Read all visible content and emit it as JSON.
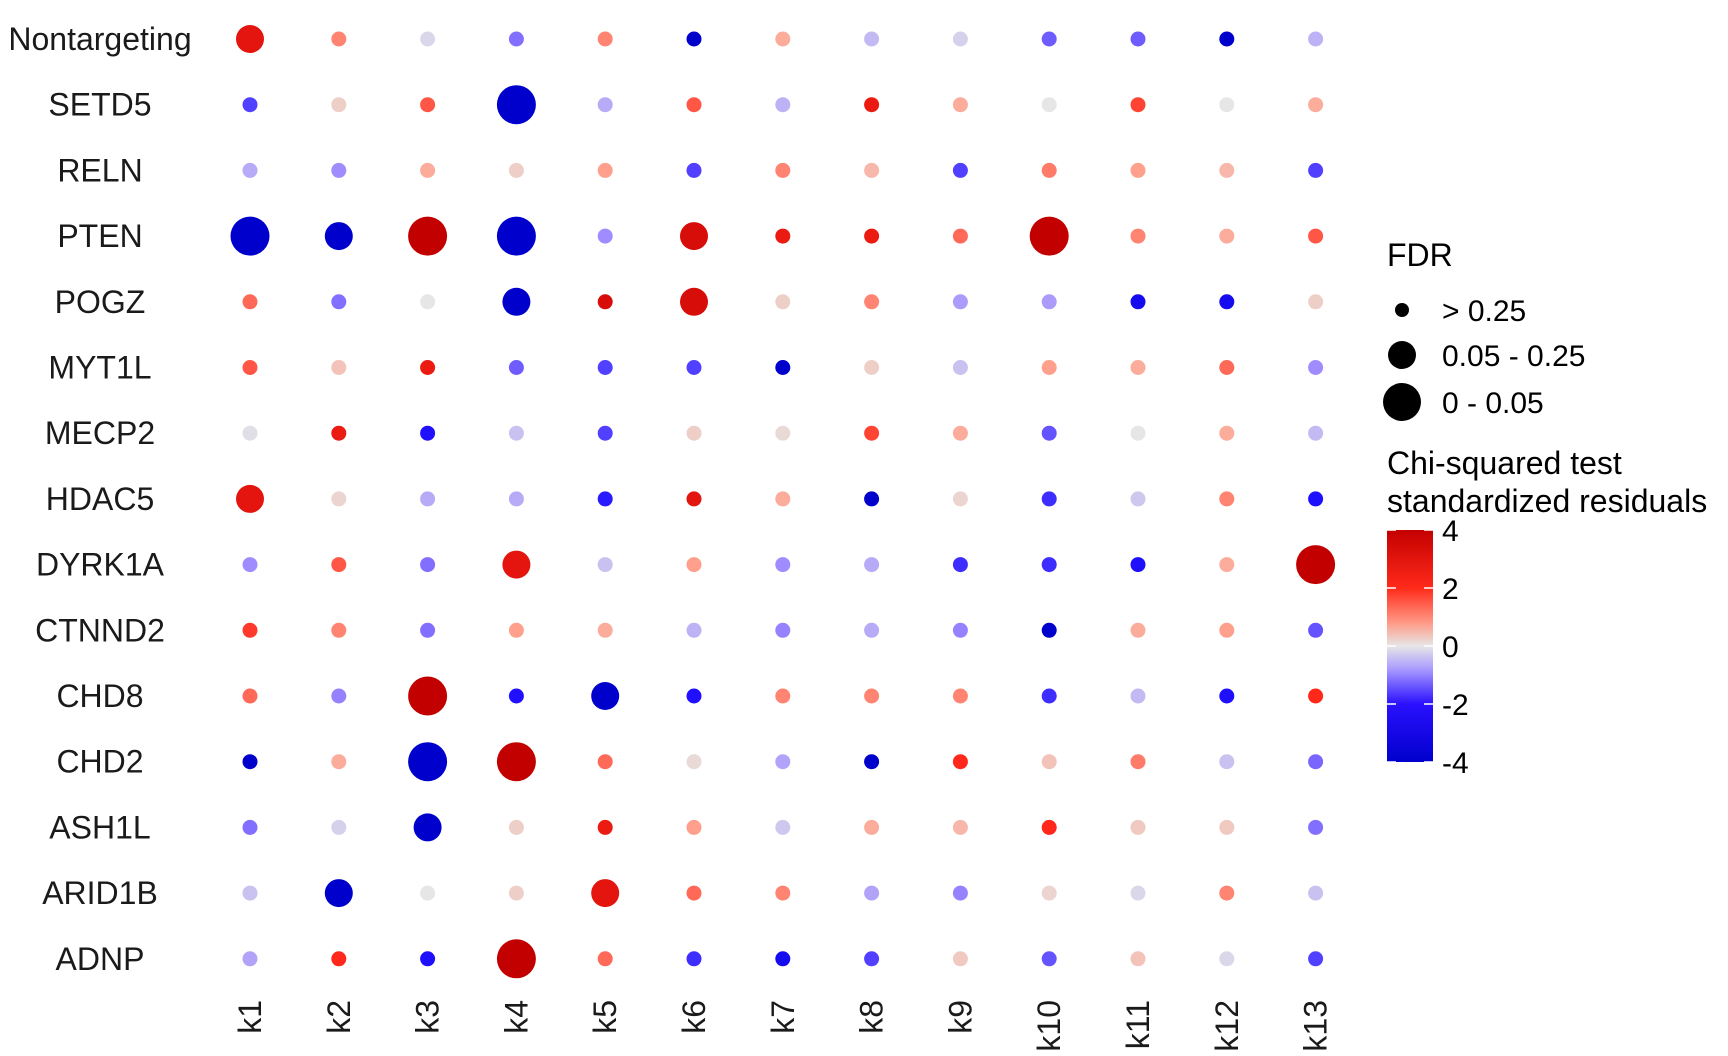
{
  "chart_data": {
    "type": "scatter",
    "subtype": "dot-matrix",
    "rows": [
      "Nontargeting",
      "SETD5",
      "RELN",
      "PTEN",
      "POGZ",
      "MYT1L",
      "MECP2",
      "HDAC5",
      "DYRK1A",
      "CTNND2",
      "CHD8",
      "CHD2",
      "ASH1L",
      "ARID1B",
      "ADNP"
    ],
    "columns": [
      "k1",
      "k2",
      "k3",
      "k4",
      "k5",
      "k6",
      "k7",
      "k8",
      "k9",
      "k10",
      "k11",
      "k12",
      "k13"
    ],
    "residuals": [
      [
        3.2,
        1.5,
        -0.2,
        -1.5,
        1.5,
        -4.0,
        1.0,
        -0.6,
        -0.3,
        -1.7,
        -1.7,
        -4.0,
        -0.7
      ],
      [
        -2.0,
        0.4,
        2.0,
        -4.0,
        -0.8,
        2.0,
        -0.7,
        3.0,
        1.0,
        0.0,
        2.2,
        0.0,
        1.0
      ],
      [
        -0.8,
        -1.2,
        1.0,
        0.4,
        1.2,
        -2.0,
        1.5,
        0.8,
        -2.0,
        1.6,
        1.2,
        0.8,
        -2.0
      ],
      [
        -4.0,
        -4.0,
        4.0,
        -4.0,
        -1.2,
        3.5,
        3.0,
        3.0,
        1.8,
        4.0,
        1.5,
        1.0,
        2.0
      ],
      [
        1.8,
        -1.5,
        0.0,
        -4.0,
        3.5,
        3.5,
        0.4,
        1.5,
        -1.0,
        -1.0,
        -3.0,
        -3.0,
        0.4
      ],
      [
        2.0,
        0.6,
        3.0,
        -1.7,
        -2.0,
        -2.0,
        -4.0,
        0.4,
        -0.5,
        1.2,
        1.0,
        1.8,
        -1.2
      ],
      [
        -0.1,
        3.0,
        -2.5,
        -0.5,
        -2.0,
        0.4,
        0.2,
        2.2,
        1.0,
        -1.8,
        0.0,
        1.0,
        -0.6
      ],
      [
        3.2,
        0.3,
        -0.8,
        -0.8,
        -2.4,
        3.2,
        1.0,
        -4.0,
        0.3,
        -2.2,
        -0.4,
        1.5,
        -2.6
      ],
      [
        -1.2,
        2.0,
        -1.5,
        3.2,
        -0.5,
        1.2,
        -1.2,
        -0.8,
        -2.2,
        -2.2,
        -2.6,
        1.0,
        4.0
      ],
      [
        2.3,
        1.5,
        -1.5,
        1.2,
        1.0,
        -0.7,
        -1.3,
        -0.8,
        -1.3,
        -4.0,
        1.0,
        1.2,
        -1.8
      ],
      [
        1.8,
        -1.3,
        4.0,
        -2.5,
        -4.0,
        -2.5,
        1.5,
        1.5,
        1.5,
        -2.2,
        -0.6,
        -2.6,
        2.5
      ],
      [
        -4.0,
        1.0,
        -4.0,
        4.0,
        1.8,
        0.2,
        -0.9,
        -4.0,
        2.5,
        0.6,
        1.6,
        -0.5,
        -1.6
      ],
      [
        -1.5,
        -0.3,
        -4.0,
        0.4,
        3.0,
        1.2,
        -0.4,
        1.0,
        0.8,
        2.5,
        0.5,
        0.5,
        -1.5
      ],
      [
        -0.5,
        -4.0,
        0.0,
        0.4,
        3.2,
        1.8,
        1.5,
        -0.9,
        -1.3,
        0.3,
        -0.2,
        1.5,
        -0.5
      ],
      [
        -0.9,
        2.5,
        -2.6,
        4.0,
        1.8,
        -2.2,
        -3.0,
        -2.0,
        0.5,
        -1.8,
        0.6,
        -0.2,
        -2.0
      ]
    ],
    "fdr_category": [
      [
        1,
        0,
        0,
        0,
        0,
        0,
        0,
        0,
        0,
        0,
        0,
        0,
        0
      ],
      [
        0,
        0,
        0,
        2,
        0,
        0,
        0,
        0,
        0,
        0,
        0,
        0,
        0
      ],
      [
        0,
        0,
        0,
        0,
        0,
        0,
        0,
        0,
        0,
        0,
        0,
        0,
        0
      ],
      [
        2,
        1,
        2,
        2,
        0,
        1,
        0,
        0,
        0,
        2,
        0,
        0,
        0
      ],
      [
        0,
        0,
        0,
        1,
        0,
        1,
        0,
        0,
        0,
        0,
        0,
        0,
        0
      ],
      [
        0,
        0,
        0,
        0,
        0,
        0,
        0,
        0,
        0,
        0,
        0,
        0,
        0
      ],
      [
        0,
        0,
        0,
        0,
        0,
        0,
        0,
        0,
        0,
        0,
        0,
        0,
        0
      ],
      [
        1,
        0,
        0,
        0,
        0,
        0,
        0,
        0,
        0,
        0,
        0,
        0,
        0
      ],
      [
        0,
        0,
        0,
        1,
        0,
        0,
        0,
        0,
        0,
        0,
        0,
        0,
        2
      ],
      [
        0,
        0,
        0,
        0,
        0,
        0,
        0,
        0,
        0,
        0,
        0,
        0,
        0
      ],
      [
        0,
        0,
        2,
        0,
        1,
        0,
        0,
        0,
        0,
        0,
        0,
        0,
        0
      ],
      [
        0,
        0,
        2,
        2,
        0,
        0,
        0,
        0,
        0,
        0,
        0,
        0,
        0
      ],
      [
        0,
        0,
        1,
        0,
        0,
        0,
        0,
        0,
        0,
        0,
        0,
        0,
        0
      ],
      [
        0,
        1,
        0,
        0,
        1,
        0,
        0,
        0,
        0,
        0,
        0,
        0,
        0
      ],
      [
        0,
        0,
        0,
        2,
        0,
        0,
        0,
        0,
        0,
        0,
        0,
        0,
        0
      ]
    ],
    "size_legend": {
      "title": "FDR",
      "labels": [
        "> 0.25",
        "0.05 - 0.25",
        "0 - 0.05"
      ]
    },
    "color_legend": {
      "title_line1": "Chi-squared test",
      "title_line2": "standardized residuals",
      "ticks": [
        4,
        2,
        0,
        -2,
        -4
      ],
      "tick_labels": [
        "4",
        "2",
        "0",
        "-2",
        "-4"
      ],
      "range": [
        -4,
        4
      ]
    },
    "colors": {
      "low": "#0000cc",
      "low_mid": "#1010ff",
      "mid_low": "#8866ff",
      "mid": "#e6e6e6",
      "mid_high": "#ff8f70",
      "high_mid": "#ee1111",
      "high": "#c30000"
    },
    "grid": false,
    "legend_position": "right"
  }
}
